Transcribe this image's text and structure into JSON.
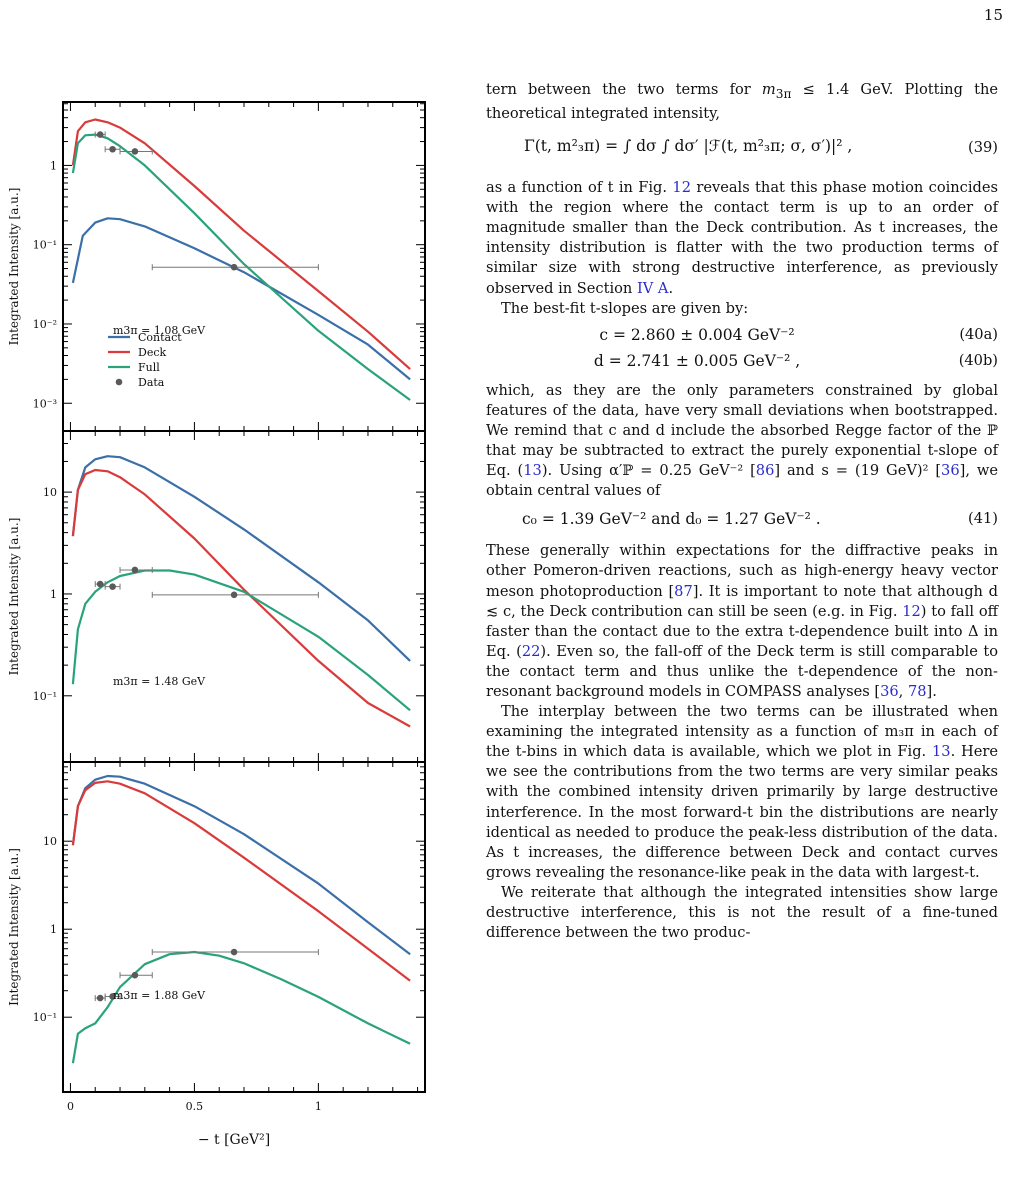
{
  "page_number": "15",
  "figure": {
    "x_axis_label": "− t  [GeV²]",
    "y_axis_label": "Integrated Intensity  [a.u.]",
    "x_tick_labels": [
      "0",
      "0.5",
      "1"
    ],
    "legend": [
      "Contact",
      "Deck",
      "Full",
      "Data"
    ],
    "colors": {
      "Contact": "#3a6fa8",
      "Deck": "#d93a3a",
      "Full": "#2aa37a",
      "Data": "#5a5a5a"
    }
  },
  "chart_data": [
    {
      "type": "line",
      "annotation": "m3π = 1.08 GeV",
      "xlabel": "− t  [GeV²]",
      "ylabel": "Integrated Intensity  [a.u.]",
      "xlim": [
        -0.03,
        1.43
      ],
      "ylim_log10": [
        -3.35,
        0.8
      ],
      "y_tick_labels": [
        "10⁻³",
        "10⁻²",
        "10⁻¹",
        "1"
      ],
      "series": [
        {
          "name": "Contact",
          "x": [
            0.01,
            0.05,
            0.1,
            0.15,
            0.2,
            0.3,
            0.5,
            0.7,
            1.0,
            1.2,
            1.37
          ],
          "y": [
            0.033,
            0.13,
            0.19,
            0.215,
            0.21,
            0.17,
            0.09,
            0.045,
            0.013,
            0.0055,
            0.002
          ]
        },
        {
          "name": "Deck",
          "x": [
            0.01,
            0.03,
            0.06,
            0.1,
            0.15,
            0.2,
            0.3,
            0.5,
            0.7,
            1.0,
            1.2,
            1.37
          ],
          "y": [
            1.0,
            2.7,
            3.5,
            3.8,
            3.5,
            3.0,
            1.9,
            0.55,
            0.15,
            0.026,
            0.008,
            0.0027
          ]
        },
        {
          "name": "Full",
          "x": [
            0.01,
            0.03,
            0.06,
            0.1,
            0.15,
            0.2,
            0.3,
            0.5,
            0.7,
            1.0,
            1.2,
            1.37
          ],
          "y": [
            0.8,
            1.9,
            2.4,
            2.45,
            2.2,
            1.75,
            1.0,
            0.25,
            0.057,
            0.0082,
            0.0027,
            0.0011
          ]
        }
      ],
      "data_points": [
        {
          "x": 0.12,
          "y": 2.45,
          "xerr": [
            0.1,
            0.14
          ]
        },
        {
          "x": 0.17,
          "y": 1.6,
          "xerr": [
            0.14,
            0.2
          ]
        },
        {
          "x": 0.26,
          "y": 1.5,
          "xerr": [
            0.2,
            0.33
          ]
        },
        {
          "x": 0.66,
          "y": 0.052,
          "xerr": [
            0.33,
            1.0
          ]
        }
      ]
    },
    {
      "type": "line",
      "annotation": "m3π = 1.48 GeV",
      "xlabel": "− t  [GeV²]",
      "ylabel": "Integrated Intensity  [a.u.]",
      "xlim": [
        -0.03,
        1.43
      ],
      "ylim_log10": [
        -1.65,
        1.6
      ],
      "y_tick_labels": [
        "10⁻¹",
        "1",
        "10"
      ],
      "series": [
        {
          "name": "Contact",
          "x": [
            0.01,
            0.03,
            0.06,
            0.1,
            0.15,
            0.2,
            0.3,
            0.5,
            0.7,
            1.0,
            1.2,
            1.37
          ],
          "y": [
            3.7,
            10.5,
            17.5,
            21.0,
            22.5,
            22.0,
            17.5,
            9.0,
            4.3,
            1.3,
            0.55,
            0.22
          ]
        },
        {
          "name": "Deck",
          "x": [
            0.01,
            0.03,
            0.06,
            0.1,
            0.15,
            0.2,
            0.3,
            0.5,
            0.7,
            1.0,
            1.2,
            1.37
          ],
          "y": [
            3.7,
            10.5,
            15.0,
            16.5,
            16.0,
            14.0,
            9.5,
            3.5,
            1.1,
            0.22,
            0.085,
            0.05
          ]
        },
        {
          "name": "Full",
          "x": [
            0.01,
            0.03,
            0.06,
            0.1,
            0.15,
            0.2,
            0.3,
            0.4,
            0.5,
            0.7,
            1.0,
            1.2,
            1.37
          ],
          "y": [
            0.13,
            0.45,
            0.8,
            1.05,
            1.3,
            1.5,
            1.7,
            1.7,
            1.55,
            1.05,
            0.38,
            0.16,
            0.072
          ]
        }
      ],
      "data_points": [
        {
          "x": 0.12,
          "y": 1.25,
          "xerr": [
            0.1,
            0.14
          ]
        },
        {
          "x": 0.17,
          "y": 1.18,
          "xerr": [
            0.14,
            0.2
          ]
        },
        {
          "x": 0.26,
          "y": 1.72,
          "xerr": [
            0.2,
            0.33
          ]
        },
        {
          "x": 0.66,
          "y": 0.98,
          "xerr": [
            0.33,
            1.0
          ]
        }
      ]
    },
    {
      "type": "line",
      "annotation": "m3π = 1.88 GeV",
      "xlabel": "− t  [GeV²]",
      "ylabel": "Integrated Intensity  [a.u.]",
      "xlim": [
        -0.03,
        1.43
      ],
      "ylim_log10": [
        -1.85,
        1.9
      ],
      "y_tick_labels": [
        "10⁻¹",
        "1",
        "10"
      ],
      "series": [
        {
          "name": "Contact",
          "x": [
            0.01,
            0.03,
            0.06,
            0.1,
            0.15,
            0.2,
            0.3,
            0.5,
            0.7,
            1.0,
            1.2,
            1.37
          ],
          "y": [
            9.0,
            25.0,
            40.0,
            50.0,
            55.0,
            54.0,
            45.0,
            25.0,
            12.0,
            3.3,
            1.2,
            0.52
          ]
        },
        {
          "name": "Deck",
          "x": [
            0.01,
            0.03,
            0.06,
            0.1,
            0.15,
            0.2,
            0.3,
            0.5,
            0.7,
            1.0,
            1.2,
            1.37
          ],
          "y": [
            9.0,
            25.0,
            38.0,
            46.0,
            48.0,
            45.0,
            35.0,
            16.0,
            6.5,
            1.6,
            0.6,
            0.26
          ]
        },
        {
          "name": "Full",
          "x": [
            0.01,
            0.03,
            0.06,
            0.1,
            0.15,
            0.2,
            0.3,
            0.4,
            0.5,
            0.6,
            0.7,
            0.85,
            1.0,
            1.2,
            1.37
          ],
          "y": [
            0.03,
            0.065,
            0.075,
            0.085,
            0.13,
            0.22,
            0.4,
            0.52,
            0.55,
            0.5,
            0.41,
            0.27,
            0.17,
            0.085,
            0.05
          ]
        }
      ],
      "data_points": [
        {
          "x": 0.12,
          "y": 0.165,
          "xerr": [
            0.1,
            0.14
          ]
        },
        {
          "x": 0.17,
          "y": 0.172,
          "xerr": [
            0.14,
            0.2
          ]
        },
        {
          "x": 0.26,
          "y": 0.3,
          "xerr": [
            0.2,
            0.33
          ]
        },
        {
          "x": 0.66,
          "y": 0.55,
          "xerr": [
            0.33,
            1.0
          ]
        }
      ]
    }
  ],
  "text": {
    "p1_a": "tern between the two terms for ",
    "p1_m": "m",
    "p1_msub": "3π",
    "p1_b": " ≤ 1.4 GeV. Plotting the theoretical integrated intensity,",
    "eq39": "Γ(t, m²₃π) = ∫ dσ ∫ dσ′ |ℱ(t, m²₃π; σ, σ′)|² ,",
    "eq39_num": "(39)",
    "p2_a": "as a function of t in Fig. ",
    "p2_ref1": "12",
    "p2_b": " reveals that this phase motion coincides with the region where the contact term is up to an order of magnitude smaller than the Deck contribution. As t increases, the intensity distribution is flatter with the two production terms of similar size with strong destructive interference, as previously observed in Section ",
    "p2_ref2": "IV A",
    "p2_c": ".",
    "p3": "The best-fit t-slopes are given by:",
    "eq40a": "c = 2.860 ± 0.004 GeV⁻²",
    "eq40a_num": "(40a)",
    "eq40b": "d = 2.741 ± 0.005 GeV⁻² ,",
    "eq40b_num": "(40b)",
    "p4_a": "which, as they are the only parameters constrained by global features of the data, have very small deviations when bootstrapped. We remind that c and d include the absorbed Regge factor of the ℙ that may be subtracted to extract the purely exponential t-slope of Eq. (",
    "p4_ref1": "13",
    "p4_b": "). Using α′ℙ = 0.25 GeV⁻² [",
    "p4_ref2": "86",
    "p4_c": "] and s = (19 GeV)² [",
    "p4_ref3": "36",
    "p4_d": "], we obtain central values of",
    "eq41": "c₀ = 1.39 GeV⁻²    and    d₀ = 1.27 GeV⁻² .",
    "eq41_num": "(41)",
    "p5_a": "These generally within expectations for the diffractive peaks in other Pomeron-driven reactions, such as high-energy heavy vector meson photoproduction [",
    "p5_ref1": "87",
    "p5_b": "]. It is important to note that although d ≲ c, the Deck contribution can still be seen (e.g. in Fig. ",
    "p5_ref2": "12",
    "p5_c": ") to fall off faster than the contact due to the extra t-dependence built into Δ in Eq. (",
    "p5_ref3": "22",
    "p5_d": "). Even so, the fall-off of the Deck term is still comparable to the contact term and thus unlike the t-dependence of the non-resonant background models in COMPASS analyses [",
    "p5_ref4": "36",
    "p5_e": ", ",
    "p5_ref5": "78",
    "p5_f": "].",
    "p6_a": "The interplay between the two terms can be illustrated when examining the integrated intensity as a function of m₃π in each of the t-bins in which data is available, which we plot in Fig. ",
    "p6_ref1": "13",
    "p6_b": ". Here we see the contributions from the two terms are very similar peaks with the combined intensity driven primarily by large destructive interference. In the most forward-t bin the distributions are nearly identical as needed to produce the peak-less distribution of the data. As t increases, the difference between Deck and contact curves grows revealing the resonance-like peak in the data with largest-t.",
    "p7": "We reiterate that although the integrated intensities show large destructive interference, this is not the result of a fine-tuned difference between the two produc-"
  }
}
